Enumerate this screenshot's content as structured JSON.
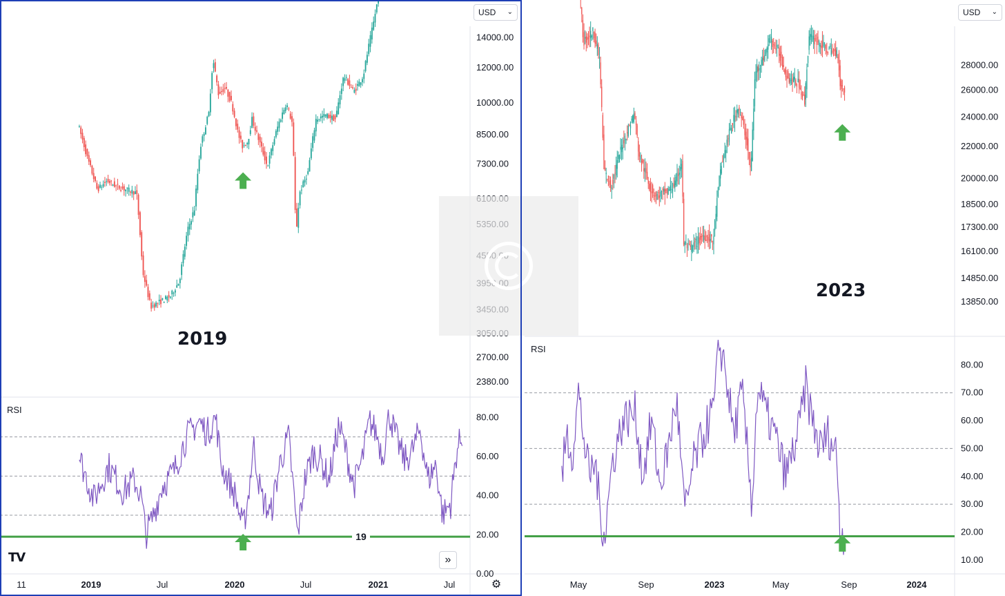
{
  "currency_left": "USD",
  "currency_right": "USD",
  "year_left": "2019",
  "year_right": "2023",
  "rsi_title": "RSI",
  "rsi_green_level_label": "19",
  "logo": "TV",
  "scroll_icon": "»",
  "settings_icon": "gear-icon",
  "colors": {
    "up": "#26a69a",
    "down": "#ef5350",
    "rsi": "#7e57c2",
    "support": "#43a047",
    "arrow": "#4caf50",
    "frame": "#1e3fb6"
  },
  "chart_data": [
    {
      "type": "candlestick",
      "panel": "left-price",
      "title": "2019",
      "currency": "USD",
      "yscale": "log",
      "ylim": [
        2200,
        17000
      ],
      "y_ticks": [
        "14000.00",
        "12000.00",
        "10000.00",
        "8500.00",
        "7300.00",
        "6100.00",
        "5350.00",
        "4550.00",
        "3950.00",
        "3450.00",
        "3050.00",
        "2700.00",
        "2380.00"
      ],
      "x_ticks": [
        "11",
        "2019",
        "Jul",
        "2020",
        "Jul",
        "2021",
        "Jul"
      ],
      "x_tick_dates": [
        "2017-11-01",
        "2019-01-01",
        "2019-07-01",
        "2020-01-01",
        "2020-07-01",
        "2021-01-01",
        "2021-07-01"
      ],
      "path_dates": [
        "2018-05-01",
        "2018-06-01",
        "2018-07-01",
        "2018-08-01",
        "2018-09-01",
        "2018-10-01",
        "2018-11-01",
        "2018-11-20",
        "2018-12-15",
        "2019-01-15",
        "2019-02-15",
        "2019-03-15",
        "2019-04-10",
        "2019-05-01",
        "2019-05-20",
        "2019-06-15",
        "2019-06-28",
        "2019-07-15",
        "2019-08-05",
        "2019-08-25",
        "2019-09-15",
        "2019-09-28",
        "2019-10-15",
        "2019-10-28",
        "2019-11-15",
        "2019-12-15",
        "2020-01-15",
        "2020-02-12",
        "2020-03-02",
        "2020-03-13",
        "2020-03-25",
        "2020-04-20",
        "2020-05-15",
        "2020-06-15",
        "2020-07-15",
        "2020-08-10",
        "2020-09-10",
        "2020-10-10",
        "2020-11-10",
        "2020-12-01",
        "2020-12-20"
      ],
      "path_values": [
        9000,
        7500,
        6400,
        6700,
        6500,
        6400,
        6300,
        4200,
        3500,
        3600,
        3700,
        4000,
        5200,
        5800,
        8000,
        9500,
        12500,
        10500,
        10800,
        10000,
        8500,
        8000,
        8200,
        9200,
        8400,
        7200,
        8800,
        10000,
        9000,
        5000,
        6300,
        7000,
        9200,
        9400,
        9200,
        11500,
        10600,
        11500,
        15000,
        18000,
        24000
      ],
      "annotation": {
        "type": "up-arrow",
        "date": "2019-09-25",
        "value": 7000
      }
    },
    {
      "type": "line",
      "panel": "left-rsi",
      "title": "RSI",
      "ylim": [
        0,
        90
      ],
      "y_ticks": [
        "80.00",
        "60.00",
        "40.00",
        "20.00",
        "0.00"
      ],
      "reference_lines": [
        70,
        50,
        30
      ],
      "support_line": {
        "value": 19,
        "label": "19"
      },
      "path_dates": [
        "2018-05-01",
        "2018-06-15",
        "2018-08-01",
        "2018-09-15",
        "2018-10-20",
        "2018-11-10",
        "2018-11-25",
        "2018-12-15",
        "2019-01-15",
        "2019-02-20",
        "2019-04-01",
        "2019-05-10",
        "2019-06-05",
        "2019-07-01",
        "2019-07-20",
        "2019-08-10",
        "2019-09-01",
        "2019-09-25",
        "2019-10-10",
        "2019-10-28",
        "2019-11-20",
        "2019-12-20",
        "2020-01-20",
        "2020-02-15",
        "2020-03-13",
        "2020-04-05",
        "2020-05-01",
        "2020-05-25",
        "2020-06-20",
        "2020-07-20",
        "2020-08-10",
        "2020-09-05",
        "2020-10-01",
        "2020-10-25",
        "2020-11-15",
        "2020-12-05",
        "2020-12-25",
        "2021-01-15",
        "2021-02-10",
        "2021-03-05",
        "2021-04-01",
        "2021-04-25",
        "2021-05-20",
        "2021-06-10",
        "2021-07-05",
        "2021-07-25",
        "2021-08-10"
      ],
      "path_values": [
        60,
        38,
        55,
        42,
        48,
        40,
        20,
        28,
        45,
        52,
        70,
        78,
        72,
        80,
        55,
        48,
        40,
        23,
        38,
        66,
        40,
        30,
        58,
        70,
        19,
        48,
        62,
        58,
        48,
        76,
        64,
        45,
        58,
        78,
        72,
        60,
        82,
        70,
        58,
        62,
        74,
        48,
        56,
        30,
        36,
        64,
        70
      ],
      "annotation": {
        "type": "up-arrow",
        "date": "2019-09-25",
        "value": 12
      }
    },
    {
      "type": "candlestick",
      "panel": "right-price",
      "title": "2023",
      "currency": "USD",
      "yscale": "log",
      "ylim": [
        12500,
        34000
      ],
      "y_ticks": [
        "28000.00",
        "26000.00",
        "24000.00",
        "22000.00",
        "20000.00",
        "18500.00",
        "17300.00",
        "16100.00",
        "14850.00",
        "13850.00"
      ],
      "x_ticks": [
        "May",
        "Sep",
        "2023",
        "May",
        "Sep",
        "2024"
      ],
      "x_tick_dates": [
        "2022-05-01",
        "2022-09-01",
        "2023-01-01",
        "2023-05-01",
        "2023-09-01",
        "2024-01-01"
      ],
      "path_dates": [
        "2022-04-01",
        "2022-04-20",
        "2022-05-05",
        "2022-05-12",
        "2022-05-30",
        "2022-06-10",
        "2022-06-18",
        "2022-07-01",
        "2022-07-20",
        "2022-08-12",
        "2022-08-20",
        "2022-09-10",
        "2022-09-20",
        "2022-10-10",
        "2022-10-25",
        "2022-11-05",
        "2022-11-09",
        "2022-11-20",
        "2022-12-15",
        "2023-01-01",
        "2023-01-14",
        "2023-01-31",
        "2023-02-15",
        "2023-03-02",
        "2023-03-10",
        "2023-03-18",
        "2023-03-31",
        "2023-04-14",
        "2023-04-30",
        "2023-05-15",
        "2023-06-05",
        "2023-06-15",
        "2023-06-23",
        "2023-07-10",
        "2023-07-20",
        "2023-08-05",
        "2023-08-15",
        "2023-08-17",
        "2023-08-25"
      ],
      "path_values": [
        40000,
        41000,
        35000,
        30000,
        31000,
        28500,
        20500,
        19500,
        22000,
        24300,
        21500,
        19400,
        19000,
        19200,
        19700,
        21000,
        16500,
        16200,
        16900,
        16600,
        20500,
        23000,
        24800,
        22500,
        20300,
        27500,
        28400,
        30300,
        29000,
        27000,
        26500,
        25100,
        30500,
        30000,
        29500,
        29200,
        29000,
        26500,
        26000
      ],
      "annotation": {
        "type": "up-arrow",
        "date": "2023-08-20",
        "value": 23500
      }
    },
    {
      "type": "line",
      "panel": "right-rsi",
      "title": "RSI",
      "ylim": [
        5,
        90
      ],
      "y_ticks": [
        "80.00",
        "70.00",
        "60.00",
        "50.00",
        "40.00",
        "30.00",
        "20.00",
        "10.00"
      ],
      "reference_lines": [
        70,
        50,
        30
      ],
      "support_line": {
        "value": 18.5
      },
      "path_dates": [
        "2022-04-01",
        "2022-04-10",
        "2022-04-20",
        "2022-05-01",
        "2022-05-12",
        "2022-05-20",
        "2022-06-01",
        "2022-06-10",
        "2022-06-18",
        "2022-07-01",
        "2022-07-20",
        "2022-08-12",
        "2022-08-25",
        "2022-09-10",
        "2022-09-25",
        "2022-10-10",
        "2022-10-25",
        "2022-11-09",
        "2022-11-25",
        "2022-12-15",
        "2023-01-01",
        "2023-01-10",
        "2023-01-20",
        "2023-02-05",
        "2023-02-20",
        "2023-03-10",
        "2023-03-20",
        "2023-04-05",
        "2023-04-20",
        "2023-05-10",
        "2023-06-01",
        "2023-06-15",
        "2023-06-25",
        "2023-07-10",
        "2023-07-25",
        "2023-08-10",
        "2023-08-16",
        "2023-08-20",
        "2023-08-25"
      ],
      "path_values": [
        40,
        55,
        48,
        70,
        52,
        40,
        45,
        25,
        20,
        45,
        60,
        63,
        40,
        60,
        36,
        50,
        68,
        26,
        45,
        56,
        65,
        88,
        80,
        55,
        70,
        30,
        72,
        62,
        55,
        40,
        55,
        72,
        62,
        50,
        55,
        48,
        20,
        19,
        21
      ],
      "annotation": {
        "type": "up-arrow",
        "date": "2023-08-20",
        "value": 13
      }
    }
  ]
}
